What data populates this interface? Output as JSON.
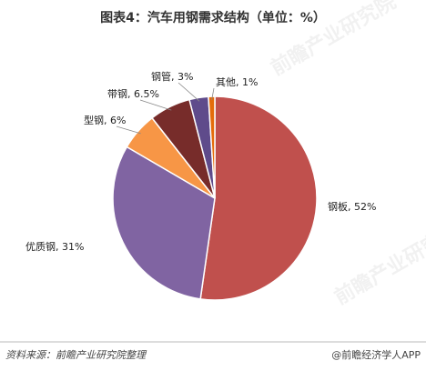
{
  "chart_data": {
    "type": "pie",
    "title": "图表4：汽车用钢需求结构（单位：%）",
    "values": [
      52,
      31,
      6,
      6.5,
      3,
      1
    ],
    "value_labels": [
      "钢板, 52%",
      "优质钢, 31%",
      "型钢, 6%",
      "带钢, 6.5%",
      "钢管, 3%",
      "其他, 1%"
    ],
    "colors": [
      "#c0504d",
      "#8064a2",
      "#f79646",
      "#772c2a",
      "#5f4b8b",
      "#e46c0a"
    ]
  },
  "source": "资料来源：前瞻产业研究院整理",
  "brand": "@前瞻经济学人APP",
  "watermark": "前瞻产业研究院"
}
